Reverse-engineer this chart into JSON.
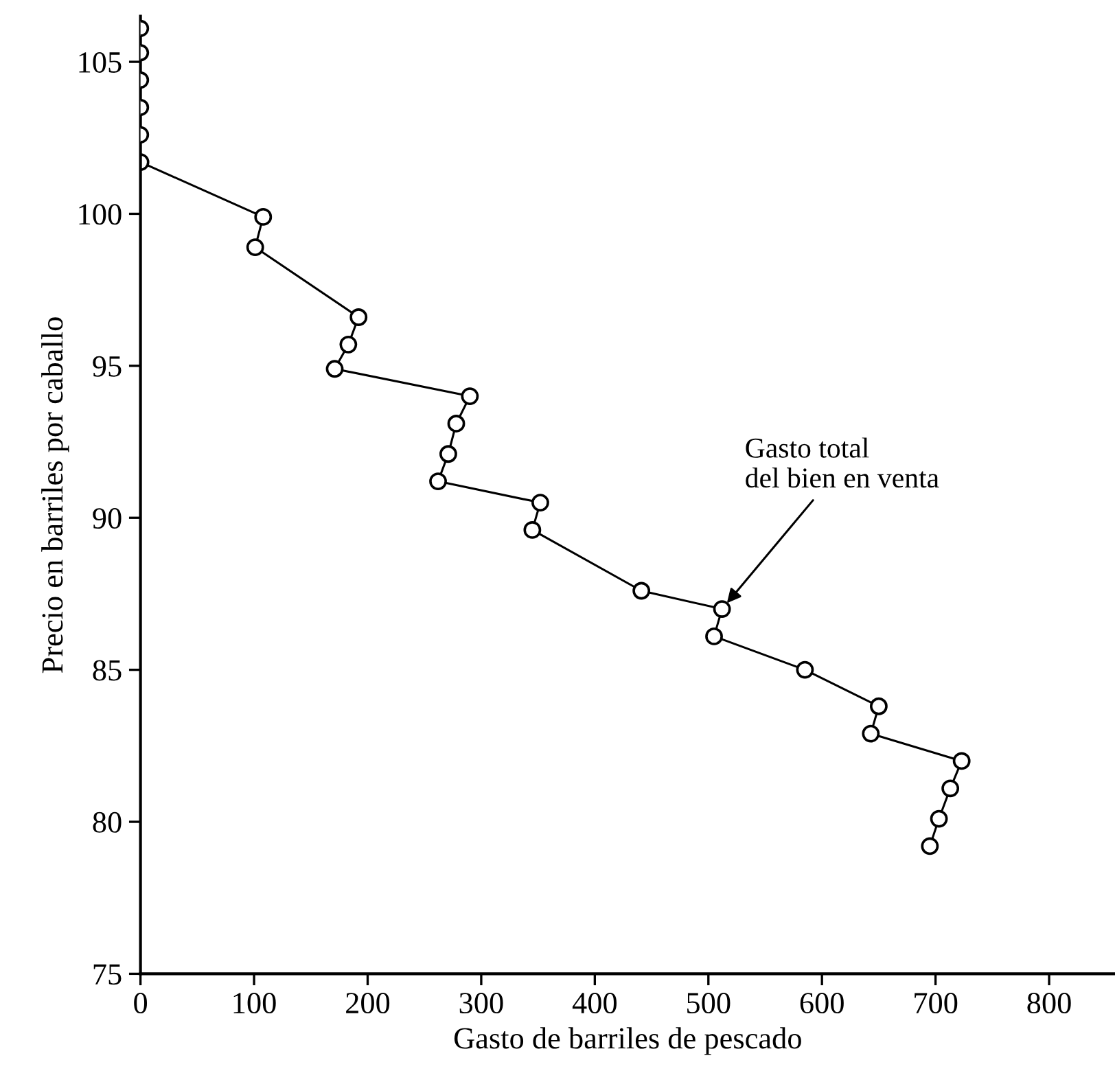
{
  "chart_data": {
    "type": "line",
    "xlabel": "Gasto de barriles de pescado",
    "ylabel": "Precio en barriles por caballo",
    "series": [
      {
        "type": "scatter",
        "color": "#000000",
        "x": [
          0,
          0,
          0,
          0,
          0
        ],
        "values": [
          106.1,
          105.3,
          104.4,
          103.5,
          102.6
        ]
      },
      {
        "color": "#000000",
        "x": [
          0,
          108,
          101,
          192,
          183,
          171,
          290,
          278,
          271,
          262,
          352,
          345,
          441,
          512,
          505,
          585,
          650,
          643,
          723,
          713,
          703,
          695
        ],
        "values": [
          101.7,
          99.9,
          98.9,
          96.6,
          95.7,
          94.9,
          94.0,
          93.1,
          92.1,
          91.2,
          90.5,
          89.6,
          87.6,
          87.0,
          86.1,
          85.0,
          83.8,
          82.9,
          82.0,
          81.1,
          80.1,
          79.2
        ]
      }
    ],
    "annotations": [
      {
        "text": "Gasto total\ndel bien en venta",
        "x": 512,
        "y": 87.0
      }
    ],
    "marker": "circle",
    "line_style": "solid",
    "grid": false,
    "legend": false,
    "xlim": [
      0,
      858
    ],
    "ylim": [
      75,
      106.5
    ],
    "xticks": [
      0,
      100,
      200,
      300,
      400,
      500,
      600,
      700,
      800
    ],
    "yticks": [
      75,
      80,
      85,
      90,
      95,
      100,
      105
    ]
  }
}
